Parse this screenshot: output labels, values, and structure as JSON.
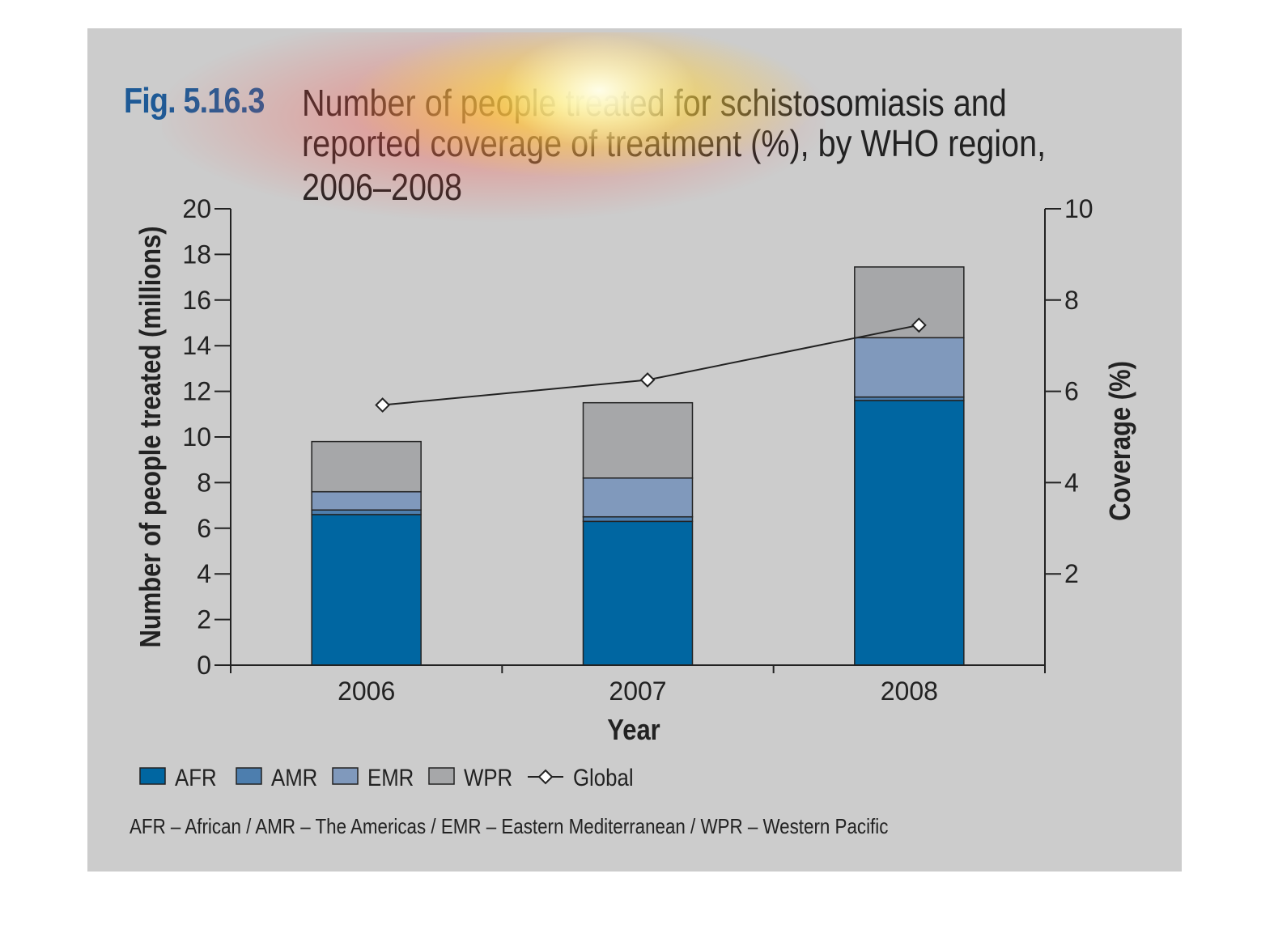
{
  "figure": {
    "label": "Fig. 5.16.3",
    "title_lines": [
      "Number of people treated for schistosomiasis and",
      "reported coverage of treatment (%), by WHO region,",
      "2006–2008"
    ],
    "footnote": "AFR – African / AMR – The Americas / EMR – Eastern Mediterranean / WPR – Western Pacific"
  },
  "colors": {
    "panel": "#cccccc",
    "AFR": "#0066a1",
    "AMR": "#4d7eae",
    "EMR": "#8099bc",
    "WPR": "#a6a7a9",
    "line": "#222222"
  },
  "chart_data": {
    "type": "bar",
    "stacked": true,
    "categories": [
      "2006",
      "2007",
      "2008"
    ],
    "xlabel": "Year",
    "ylabel": "Number of people treated (millions)",
    "y2label": "Coverage (%)",
    "ylim": [
      0,
      20
    ],
    "y2lim": [
      0,
      10
    ],
    "yticks": [
      0,
      2,
      4,
      6,
      8,
      10,
      12,
      14,
      16,
      18,
      20
    ],
    "y2ticks": [
      2,
      4,
      6,
      8,
      10
    ],
    "series": [
      {
        "name": "AFR",
        "values": [
          6.6,
          6.3,
          11.6
        ]
      },
      {
        "name": "AMR",
        "values": [
          0.2,
          0.2,
          0.15
        ]
      },
      {
        "name": "EMR",
        "values": [
          0.8,
          1.7,
          2.6
        ]
      },
      {
        "name": "WPR",
        "values": [
          2.2,
          3.3,
          3.1
        ]
      }
    ],
    "line_series": {
      "name": "Global",
      "axis": "right",
      "values": [
        5.7,
        6.25,
        7.45
      ]
    },
    "legend": [
      "AFR",
      "AMR",
      "EMR",
      "WPR",
      "Global"
    ],
    "legend_position": "bottom",
    "grid": false
  }
}
